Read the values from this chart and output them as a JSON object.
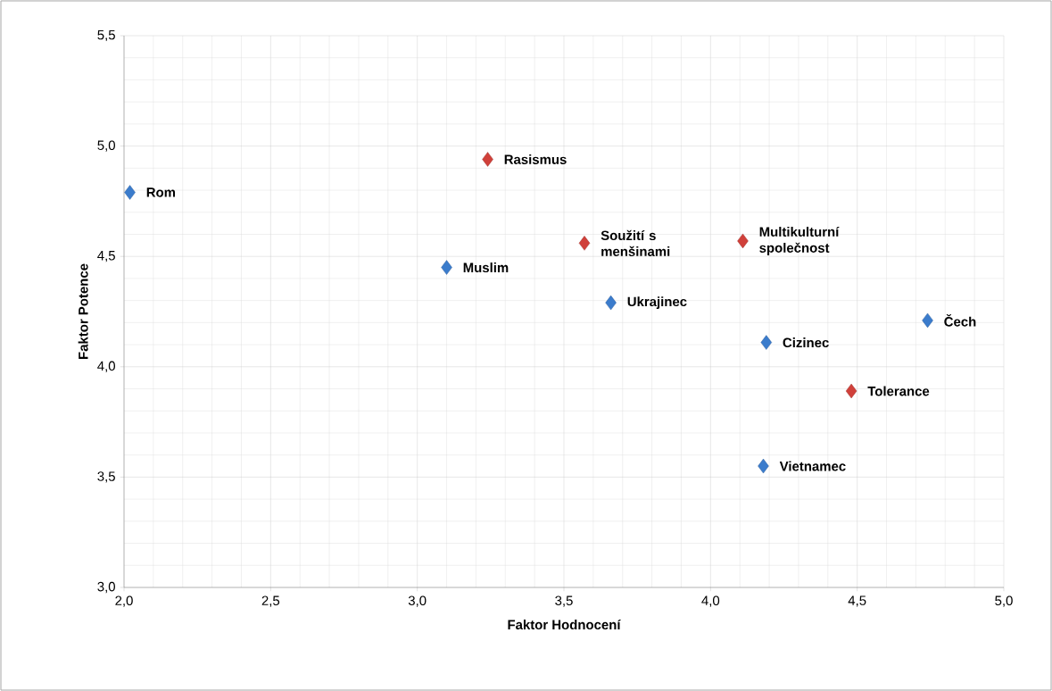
{
  "chart_data": {
    "type": "scatter",
    "xlabel": "Faktor Hodnocení",
    "ylabel": "Faktor Potence",
    "xlim": [
      2,
      5
    ],
    "ylim": [
      3,
      5.5
    ],
    "xticks": [
      {
        "value": 2,
        "label": "2,0"
      },
      {
        "value": 2.5,
        "label": "2,5"
      },
      {
        "value": 3,
        "label": "3,0"
      },
      {
        "value": 3.5,
        "label": "3,5"
      },
      {
        "value": 4,
        "label": "4,0"
      },
      {
        "value": 4.5,
        "label": "4,5"
      },
      {
        "value": 5,
        "label": "5,0"
      }
    ],
    "yticks": [
      {
        "value": 3,
        "label": "3,0"
      },
      {
        "value": 3.5,
        "label": "3,5"
      },
      {
        "value": 4,
        "label": "4,0"
      },
      {
        "value": 4.5,
        "label": "4,5"
      },
      {
        "value": 5,
        "label": "5,0"
      },
      {
        "value": 5.5,
        "label": "5,5"
      }
    ],
    "grid": true,
    "marker": "diamond",
    "series": [
      {
        "color": "#3b7ccc",
        "x": [
          2.02,
          3.1,
          3.66,
          4.74,
          4.19,
          4.18
        ],
        "values": [
          4.79,
          4.45,
          4.29,
          4.21,
          4.11,
          3.55
        ]
      },
      {
        "color": "#d0403a",
        "x": [
          3.24,
          3.57,
          4.11,
          4.48
        ],
        "values": [
          4.94,
          4.56,
          4.57,
          3.89
        ]
      }
    ],
    "annotations": [
      {
        "text": "Rom",
        "x": 2.02,
        "y": 4.79
      },
      {
        "text": "Muslim",
        "x": 3.1,
        "y": 4.45
      },
      {
        "text": "Ukrajinec",
        "x": 3.66,
        "y": 4.29
      },
      {
        "text": "Čech",
        "x": 4.74,
        "y": 4.21
      },
      {
        "text": "Cizinec",
        "x": 4.19,
        "y": 4.11
      },
      {
        "text": "Vietnamec",
        "x": 4.18,
        "y": 3.55
      },
      {
        "text": "Rasismus",
        "x": 3.24,
        "y": 4.94
      },
      {
        "text": "Soužití s menšinami",
        "x": 3.57,
        "y": 4.56
      },
      {
        "text": "Multikulturní společnost",
        "x": 4.11,
        "y": 4.57
      },
      {
        "text": "Tolerance",
        "x": 4.48,
        "y": 3.89
      }
    ]
  }
}
